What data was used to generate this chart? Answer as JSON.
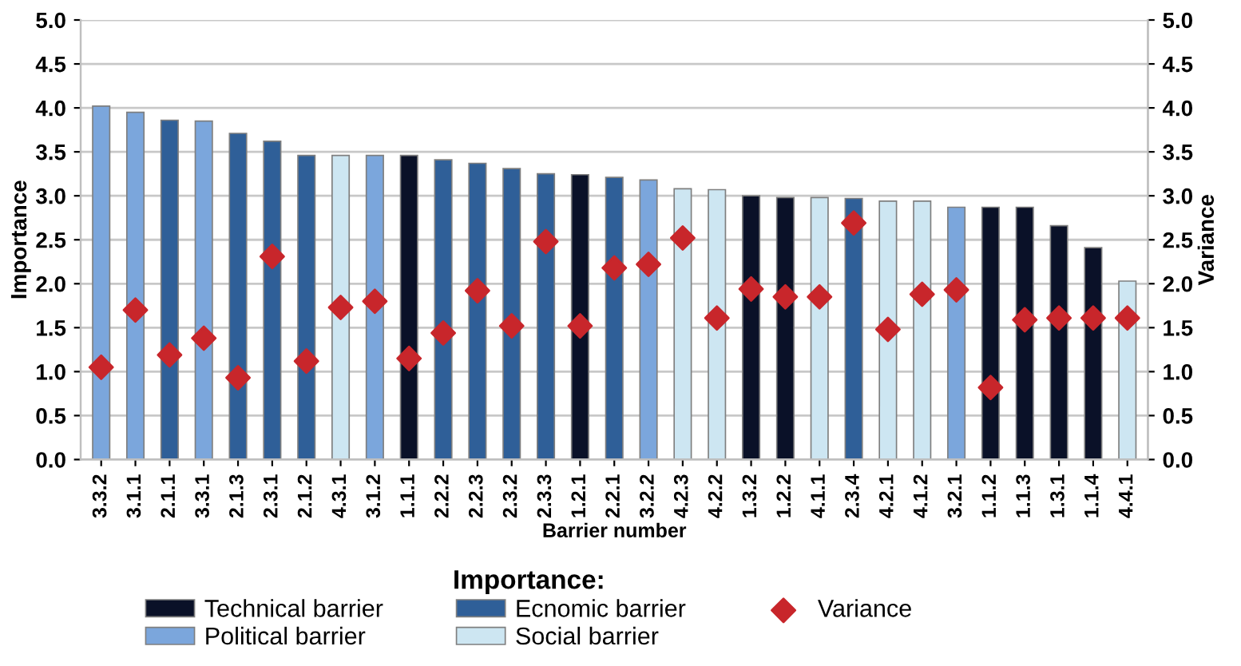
{
  "chart_data": {
    "type": "bar",
    "xlabel": "Barrier number",
    "ylabel": "Importance",
    "y2label": "Variance",
    "legend_title": "Importance:",
    "categories": [
      "3.3.2",
      "3.1.1",
      "2.1.1",
      "3.3.1",
      "2.1.3",
      "2.3.1",
      "2.1.2",
      "4.3.1",
      "3.1.2",
      "1.1.1",
      "2.2.2",
      "2.2.3",
      "2.3.2",
      "2.3.3",
      "1.2.1",
      "2.2.1",
      "3.2.2",
      "4.2.3",
      "4.2.2",
      "1.3.2",
      "1.2.2",
      "4.1.1",
      "2.3.4",
      "4.2.1",
      "4.1.2",
      "3.2.1",
      "1.1.2",
      "1.1.3",
      "1.3.1",
      "1.1.4",
      "4.4.1"
    ],
    "series": [
      {
        "name": "Technical barrier",
        "color": "#0a1128",
        "values": [
          null,
          null,
          null,
          null,
          null,
          null,
          null,
          null,
          null,
          3.46,
          null,
          null,
          null,
          null,
          3.24,
          null,
          null,
          null,
          null,
          3.0,
          2.98,
          null,
          null,
          null,
          null,
          null,
          2.87,
          2.87,
          2.66,
          2.41,
          null
        ]
      },
      {
        "name": "Political barrier",
        "color": "#7ba6dc",
        "values": [
          4.02,
          3.95,
          null,
          3.85,
          null,
          null,
          null,
          null,
          3.46,
          null,
          null,
          null,
          null,
          null,
          null,
          null,
          3.18,
          null,
          null,
          null,
          null,
          null,
          null,
          null,
          null,
          2.87,
          null,
          null,
          null,
          null,
          null
        ]
      },
      {
        "name": "Ecnomic barrier",
        "color": "#2f5f98",
        "values": [
          null,
          null,
          3.86,
          null,
          3.71,
          3.62,
          3.46,
          null,
          null,
          null,
          3.41,
          3.37,
          3.31,
          3.25,
          null,
          3.21,
          null,
          null,
          null,
          null,
          null,
          null,
          2.97,
          null,
          null,
          null,
          null,
          null,
          null,
          null,
          null
        ]
      },
      {
        "name": "Social barrier",
        "color": "#cde6f2",
        "values": [
          null,
          null,
          null,
          null,
          null,
          null,
          null,
          3.46,
          null,
          null,
          null,
          null,
          null,
          null,
          null,
          null,
          null,
          3.08,
          3.07,
          null,
          null,
          2.98,
          null,
          2.94,
          2.94,
          null,
          null,
          null,
          null,
          null,
          2.03
        ]
      },
      {
        "name": "Variance",
        "type": "scatter",
        "axis": "y2",
        "marker": "diamond",
        "color": "#c8262b",
        "values": [
          1.05,
          1.7,
          1.19,
          1.38,
          0.93,
          2.31,
          1.12,
          1.73,
          1.8,
          1.15,
          1.44,
          1.92,
          1.52,
          2.48,
          1.52,
          2.18,
          2.22,
          2.52,
          1.61,
          1.94,
          1.85,
          1.85,
          2.69,
          1.48,
          1.88,
          1.93,
          0.82,
          1.59,
          1.61,
          1.61,
          1.61
        ]
      }
    ],
    "ylim": [
      0,
      5
    ],
    "yticks": [
      {
        "value": 0,
        "label": "0.0"
      },
      {
        "value": 0.5,
        "label": "0.5"
      },
      {
        "value": 1,
        "label": "1.0"
      },
      {
        "value": 1.5,
        "label": "1.5"
      },
      {
        "value": 2,
        "label": "2.0"
      },
      {
        "value": 2.5,
        "label": "2.5"
      },
      {
        "value": 3,
        "label": "3.0"
      },
      {
        "value": 3.5,
        "label": "3.5"
      },
      {
        "value": 4,
        "label": "4.0"
      },
      {
        "value": 4.5,
        "label": "4.5"
      },
      {
        "value": 5,
        "label": "5.0"
      }
    ],
    "y2lim": [
      0,
      5
    ],
    "y2ticks": [
      {
        "value": 0,
        "label": "0.0"
      },
      {
        "value": 0.5,
        "label": "0.5"
      },
      {
        "value": 1,
        "label": "1.0"
      },
      {
        "value": 1.5,
        "label": "1.5"
      },
      {
        "value": 2,
        "label": "2.0"
      },
      {
        "value": 2.5,
        "label": "2.5"
      },
      {
        "value": 3,
        "label": "3.0"
      },
      {
        "value": 3.5,
        "label": "3.5"
      },
      {
        "value": 4,
        "label": "4.0"
      },
      {
        "value": 4.5,
        "label": "4.5"
      },
      {
        "value": 5,
        "label": "5.0"
      }
    ],
    "grid": "y",
    "legend": "bottom"
  }
}
